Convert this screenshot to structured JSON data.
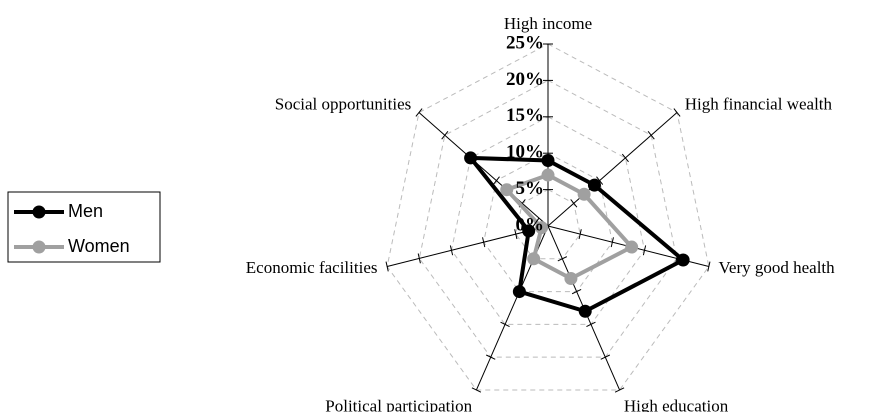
{
  "chart_data": {
    "type": "radar",
    "categories": [
      "High income",
      "High financial wealth",
      "Very good health",
      "High education",
      "Political participation",
      "Economic facilities",
      "Social opportunities"
    ],
    "series": [
      {
        "name": "Men",
        "color": "#000000",
        "values": [
          9,
          9,
          21,
          13,
          10,
          3,
          15
        ]
      },
      {
        "name": "Women",
        "color": "#a0a0a0",
        "values": [
          7,
          7,
          13,
          8,
          5,
          1,
          8
        ]
      }
    ],
    "ylim": [
      0,
      25
    ],
    "yticks": [
      {
        "value": 0,
        "label": "0%"
      },
      {
        "value": 5,
        "label": "5%"
      },
      {
        "value": 10,
        "label": "10%"
      },
      {
        "value": 15,
        "label": "15%"
      },
      {
        "value": 20,
        "label": "20%"
      },
      {
        "value": 25,
        "label": "25%"
      }
    ],
    "grid": true,
    "legend": "left"
  }
}
